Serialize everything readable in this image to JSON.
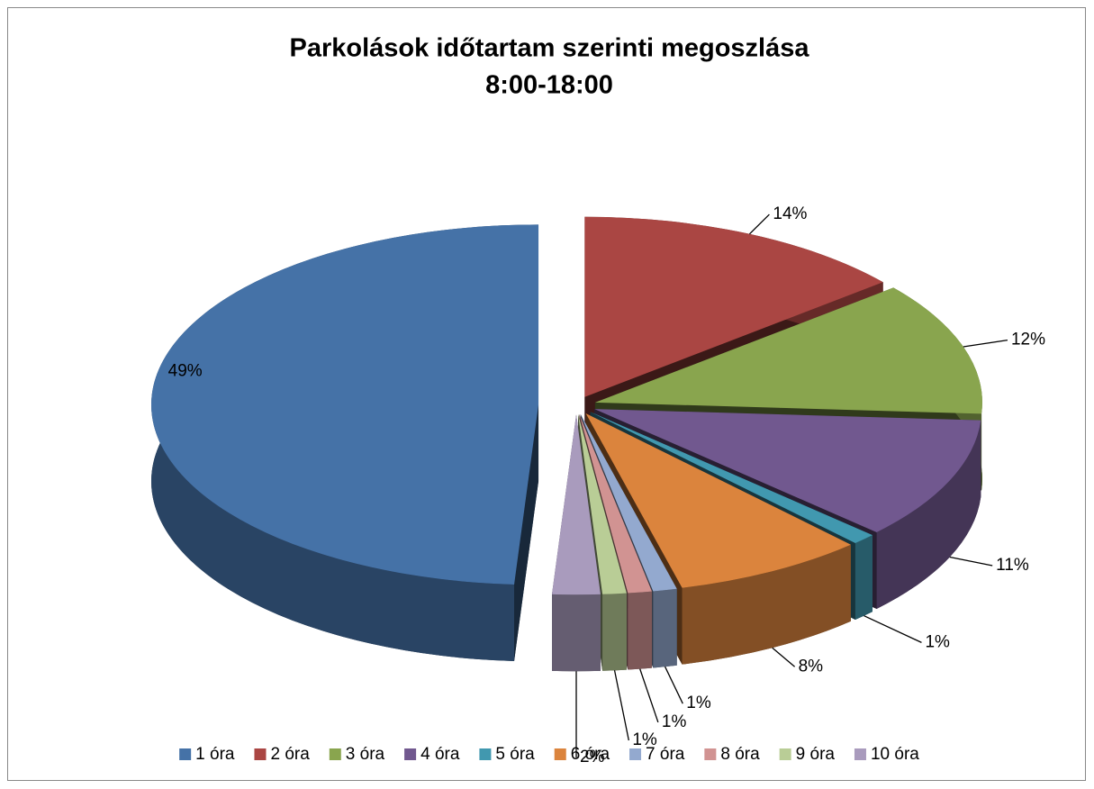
{
  "chart_data": {
    "type": "pie",
    "title": [
      "Parkolások időtartam szerinti megoszlása",
      "8:00-18:00"
    ],
    "categories": [
      "1 óra",
      "2 óra",
      "3 óra",
      "4 óra",
      "5 óra",
      "6 óra",
      "7 óra",
      "8 óra",
      "9 óra",
      "10 óra"
    ],
    "values": [
      49,
      14,
      12,
      11,
      1,
      8,
      1,
      1,
      1,
      2
    ],
    "value_labels": [
      "49%",
      "14%",
      "12%",
      "11%",
      "1%",
      "8%",
      "1%",
      "1%",
      "1%",
      "2%"
    ],
    "colors": [
      "#4572a7",
      "#aa4643",
      "#89a54e",
      "#71588f",
      "#4198af",
      "#db843d",
      "#93a9cf",
      "#d19392",
      "#b9cd96",
      "#a99bbd"
    ],
    "legend": "bottom"
  }
}
